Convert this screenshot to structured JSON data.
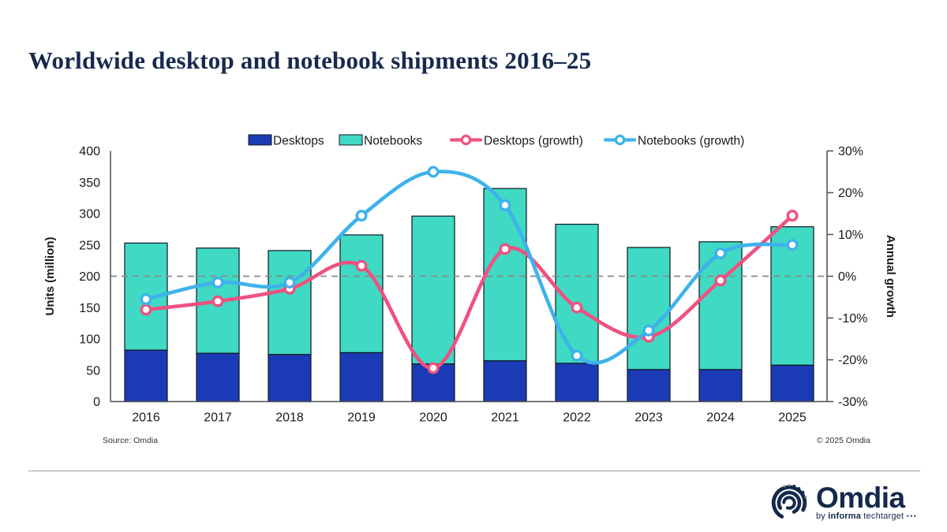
{
  "page": {
    "title": "Worldwide desktop and notebook shipments 2016–25",
    "source": "Source: Omdia",
    "copyright": "© 2025 Omdia"
  },
  "logo": {
    "name": "Omdia",
    "tagline_by": "by",
    "tagline_informa": "informa",
    "tagline_techtarget": "techtarget",
    "tagline_dots": "•••"
  },
  "colors": {
    "title": "#172a4d",
    "axis_line": "#4d4d4d",
    "axis_text": "#1a1a1a",
    "zero_line": "#8a8a8a",
    "bar_outline": "#101820"
  },
  "chart_data": {
    "type": "combo",
    "title": "Worldwide desktop and notebook shipments 2016–25",
    "categories": [
      "2016",
      "2017",
      "2018",
      "2019",
      "2020",
      "2021",
      "2022",
      "2023",
      "2024",
      "2025"
    ],
    "bar_series": [
      {
        "name": "Desktops",
        "color": "#1a3bb5",
        "values": [
          82,
          77,
          75,
          78,
          60,
          65,
          61,
          51,
          51,
          58
        ]
      },
      {
        "name": "Notebooks",
        "color": "#3fd9c4",
        "values": [
          171,
          168,
          166,
          188,
          236,
          275,
          222,
          195,
          204,
          221
        ]
      }
    ],
    "bar_totals": [
      253,
      245,
      241,
      266,
      296,
      340,
      283,
      246,
      255,
      279
    ],
    "stacked": true,
    "line_series": [
      {
        "name": "Desktops (growth)",
        "color": "#ef5180",
        "values": [
          -8,
          -6,
          -3,
          2.5,
          -22,
          6.5,
          -7.5,
          -14.5,
          -1,
          14.5
        ]
      },
      {
        "name": "Notebooks (growth)",
        "color": "#3eb2eb",
        "values": [
          -5.5,
          -1.5,
          -1.5,
          14.5,
          25,
          17,
          -19,
          -13,
          5.5,
          7.5
        ]
      }
    ],
    "left_axis": {
      "label": "Units (million)",
      "min": 0,
      "max": 400,
      "step": 50,
      "suffix": ""
    },
    "right_axis": {
      "label": "Annual growth",
      "min": -30,
      "max": 30,
      "step": 10,
      "suffix": "%"
    },
    "zero_line_dashed": true,
    "grid": false,
    "legend_position": "top"
  }
}
